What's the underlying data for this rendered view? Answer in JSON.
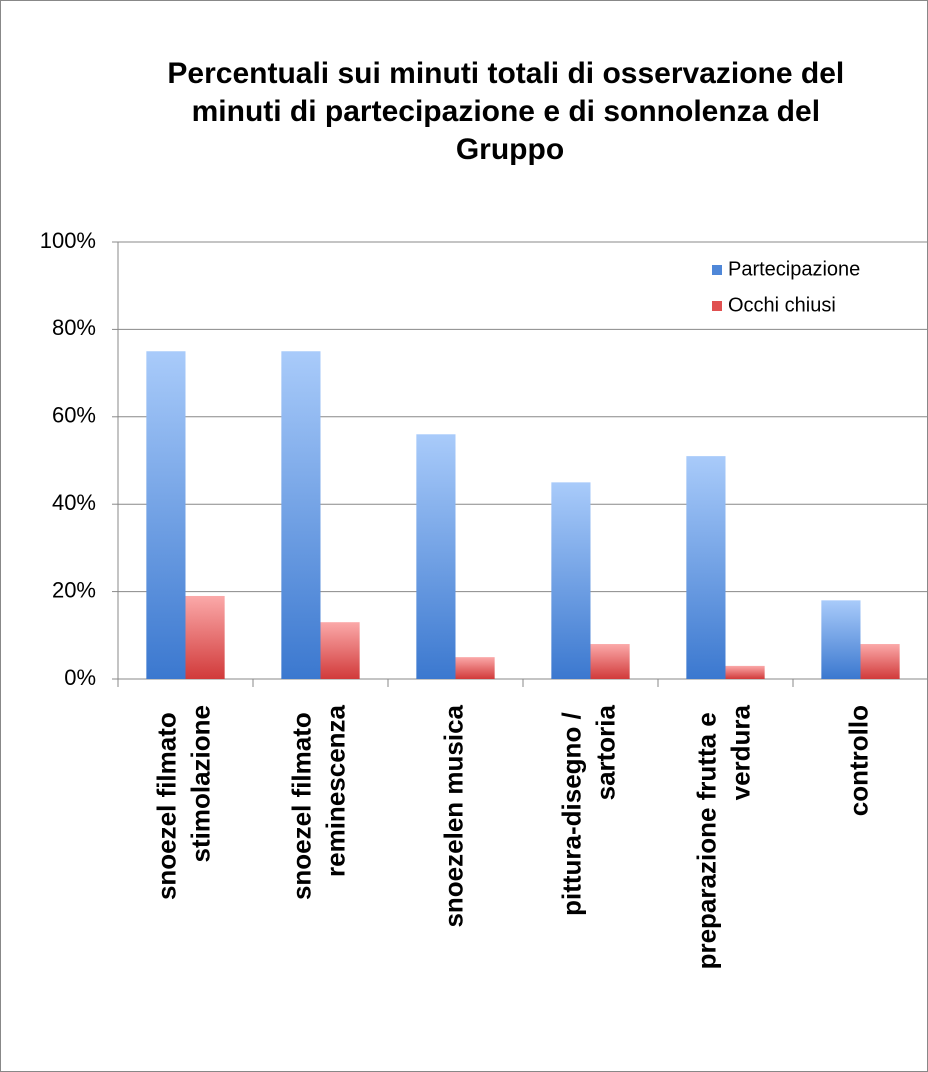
{
  "chart_data": {
    "type": "bar",
    "title": "Percentuali sui minuti totali di osservazione del minuti di partecipazione e di sonnolenza del Gruppo",
    "categories": [
      "snoezel filmato stimolazione",
      "snoezel filmato reminescenza",
      "snoezelen musica",
      "pittura-disegno / sartoria",
      "preparazione frutta e verdura",
      "controllo"
    ],
    "series": [
      {
        "name": "Partecipazione",
        "color": "#4f87d8",
        "values": [
          75,
          75,
          56,
          45,
          51,
          18
        ]
      },
      {
        "name": "Occhi chiusi",
        "color": "#e05050",
        "values": [
          19,
          13,
          5,
          8,
          3,
          8
        ]
      }
    ],
    "ylim": [
      0,
      100
    ],
    "yticks": [
      {
        "value": 0,
        "label": "0%"
      },
      {
        "value": 20,
        "label": "20%"
      },
      {
        "value": 40,
        "label": "40%"
      },
      {
        "value": 60,
        "label": "60%"
      },
      {
        "value": 80,
        "label": "80%"
      },
      {
        "value": 100,
        "label": "100%"
      }
    ],
    "grid": true,
    "legend": "upper right"
  }
}
